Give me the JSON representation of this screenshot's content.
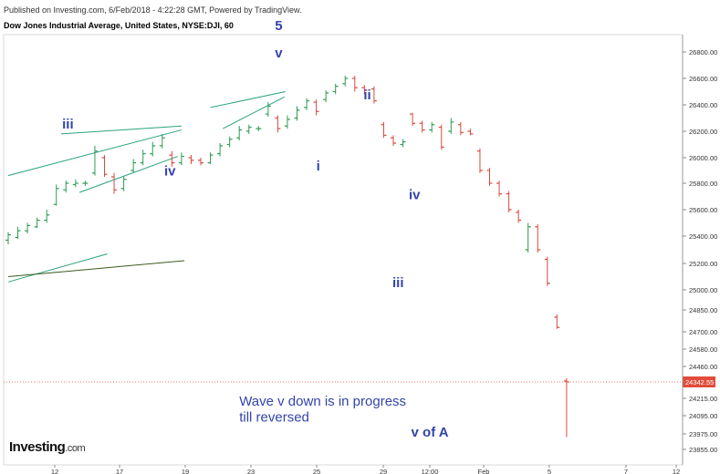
{
  "header": {
    "published": "Published on Investing.com, 6/Feb/2018 - 4:22:28 GMT, Powered by TradingView.",
    "symbol": "Dow Jones Industrial Average, United States, NYSE:DJI, 60"
  },
  "logo": {
    "text": "Investing",
    "suffix": ".com"
  },
  "colors": {
    "up": "#2e9a52",
    "down": "#d9493d",
    "trendline": "#2aa37a",
    "long_line": "#3b5a20",
    "label": "#3344aa",
    "price_tag": "#e24b3b"
  },
  "chart_data": {
    "type": "candlestick",
    "interval": "60",
    "y_ticks": [
      26800,
      26600,
      26400,
      26200,
      26000,
      25800,
      25600,
      25400,
      25200,
      25000,
      24850,
      24700,
      24580,
      24460,
      24342.55,
      24215,
      24095,
      23975,
      23855
    ],
    "y_tick_labels": [
      "26800.00",
      "26600.00",
      "26400.00",
      "26200.00",
      "26000.00",
      "25800.00",
      "25600.00",
      "25400.00",
      "25200.00",
      "25000.00",
      "24850.00",
      "24700.00",
      "24580.00",
      "24460.00",
      "24342.55",
      "24215.00",
      "24095.00",
      "23975.00",
      "23855.00"
    ],
    "x_tick_labels": [
      "12",
      "17",
      "19",
      "23",
      "25",
      "29",
      "12:00",
      "Feb",
      "5",
      "7",
      "12"
    ],
    "last_price": 24342.55,
    "candles": [
      {
        "o": 25370,
        "c": 25410,
        "h": 25430,
        "l": 25340
      },
      {
        "o": 25390,
        "c": 25440,
        "h": 25470,
        "l": 25380
      },
      {
        "o": 25440,
        "c": 25480,
        "h": 25500,
        "l": 25420
      },
      {
        "o": 25470,
        "c": 25520,
        "h": 25540,
        "l": 25460
      },
      {
        "o": 25520,
        "c": 25560,
        "h": 25600,
        "l": 25500
      },
      {
        "o": 25640,
        "c": 25760,
        "h": 25790,
        "l": 25630
      },
      {
        "o": 25750,
        "c": 25800,
        "h": 25820,
        "l": 25730
      },
      {
        "o": 25790,
        "c": 25800,
        "h": 25830,
        "l": 25770
      },
      {
        "o": 25800,
        "c": 25800,
        "h": 25820,
        "l": 25780
      },
      {
        "o": 25880,
        "c": 26050,
        "h": 26090,
        "l": 25860
      },
      {
        "o": 26000,
        "c": 25870,
        "h": 26020,
        "l": 25850
      },
      {
        "o": 25850,
        "c": 25750,
        "h": 25880,
        "l": 25720
      },
      {
        "o": 25760,
        "c": 25830,
        "h": 25850,
        "l": 25740
      },
      {
        "o": 25900,
        "c": 25960,
        "h": 25990,
        "l": 25880
      },
      {
        "o": 25960,
        "c": 26030,
        "h": 26060,
        "l": 25940
      },
      {
        "o": 26030,
        "c": 26090,
        "h": 26120,
        "l": 26010
      },
      {
        "o": 26090,
        "c": 26150,
        "h": 26180,
        "l": 26070
      },
      {
        "o": 26020,
        "c": 25960,
        "h": 26050,
        "l": 25930
      },
      {
        "o": 25960,
        "c": 26010,
        "h": 26040,
        "l": 25940
      },
      {
        "o": 26000,
        "c": 25980,
        "h": 26020,
        "l": 25950
      },
      {
        "o": 25980,
        "c": 25960,
        "h": 26000,
        "l": 25940
      },
      {
        "o": 25960,
        "c": 26020,
        "h": 26040,
        "l": 25950
      },
      {
        "o": 26030,
        "c": 26090,
        "h": 26110,
        "l": 26010
      },
      {
        "o": 26100,
        "c": 26140,
        "h": 26160,
        "l": 26080
      },
      {
        "o": 26150,
        "c": 26210,
        "h": 26240,
        "l": 26130
      },
      {
        "o": 26200,
        "c": 26230,
        "h": 26250,
        "l": 26180
      },
      {
        "o": 26220,
        "c": 26220,
        "h": 26240,
        "l": 26200
      },
      {
        "o": 26330,
        "c": 26390,
        "h": 26420,
        "l": 26310
      },
      {
        "o": 26300,
        "c": 26220,
        "h": 26320,
        "l": 26190
      },
      {
        "o": 26240,
        "c": 26290,
        "h": 26320,
        "l": 26220
      },
      {
        "o": 26300,
        "c": 26360,
        "h": 26390,
        "l": 26280
      },
      {
        "o": 26380,
        "c": 26430,
        "h": 26450,
        "l": 26360
      },
      {
        "o": 26420,
        "c": 26350,
        "h": 26440,
        "l": 26320
      },
      {
        "o": 26440,
        "c": 26490,
        "h": 26510,
        "l": 26420
      },
      {
        "o": 26500,
        "c": 26540,
        "h": 26560,
        "l": 26480
      },
      {
        "o": 26560,
        "c": 26600,
        "h": 26620,
        "l": 26540
      },
      {
        "o": 26600,
        "c": 26530,
        "h": 26620,
        "l": 26500
      },
      {
        "o": 26530,
        "c": 26510,
        "h": 26550,
        "l": 26480
      },
      {
        "o": 26520,
        "c": 26430,
        "h": 26540,
        "l": 26410
      },
      {
        "o": 26250,
        "c": 26170,
        "h": 26270,
        "l": 26150
      },
      {
        "o": 26150,
        "c": 26110,
        "h": 26170,
        "l": 26090
      },
      {
        "o": 26100,
        "c": 26120,
        "h": 26140,
        "l": 26080
      },
      {
        "o": 26330,
        "c": 26260,
        "h": 26340,
        "l": 26240
      },
      {
        "o": 26260,
        "c": 26210,
        "h": 26280,
        "l": 26190
      },
      {
        "o": 26210,
        "c": 26250,
        "h": 26270,
        "l": 26190
      },
      {
        "o": 26230,
        "c": 26080,
        "h": 26250,
        "l": 26060
      },
      {
        "o": 26200,
        "c": 26270,
        "h": 26300,
        "l": 26180
      },
      {
        "o": 26250,
        "c": 26190,
        "h": 26270,
        "l": 26170
      },
      {
        "o": 26200,
        "c": 26180,
        "h": 26220,
        "l": 26170
      },
      {
        "o": 26050,
        "c": 25900,
        "h": 26070,
        "l": 25880
      },
      {
        "o": 25900,
        "c": 25800,
        "h": 25920,
        "l": 25780
      },
      {
        "o": 25800,
        "c": 25720,
        "h": 25820,
        "l": 25700
      },
      {
        "o": 25720,
        "c": 25600,
        "h": 25740,
        "l": 25580
      },
      {
        "o": 25580,
        "c": 25520,
        "h": 25600,
        "l": 25500
      },
      {
        "o": 25300,
        "c": 25470,
        "h": 25500,
        "l": 25280
      },
      {
        "o": 25470,
        "c": 25300,
        "h": 25490,
        "l": 25280
      },
      {
        "o": 25230,
        "c": 25050,
        "h": 25250,
        "l": 25030
      },
      {
        "o": 24800,
        "c": 24730,
        "h": 24820,
        "l": 24720
      },
      {
        "o": 24350,
        "c": 24342.55,
        "h": 24370,
        "l": 23950
      }
    ],
    "annotations": [
      {
        "text": "5",
        "x": 28.1,
        "y": 26965
      },
      {
        "text": "v",
        "x": 28.1,
        "y": 26760
      },
      {
        "text": "iii",
        "x": 6.2,
        "y": 26220
      },
      {
        "text": "iv",
        "x": 16.8,
        "y": 25860
      },
      {
        "text": "i",
        "x": 32.2,
        "y": 25900
      },
      {
        "text": "ii",
        "x": 37.3,
        "y": 26440
      },
      {
        "text": "iv",
        "x": 42.2,
        "y": 25680
      },
      {
        "text": "iii",
        "x": 40.5,
        "y": 25020
      },
      {
        "text": "Wave v down is in progress",
        "x": 24.0,
        "y": 24165
      },
      {
        "text": "till reversed",
        "x": 24.0,
        "y": 24055
      },
      {
        "text": "v  of A",
        "x": 43.8,
        "y": 23955
      }
    ],
    "trendlines": [
      {
        "x1": 0,
        "y1": 25860,
        "x2": 18.0,
        "y2": 26210,
        "kind": "channel"
      },
      {
        "x1": 5.5,
        "y1": 26180,
        "x2": 18.0,
        "y2": 26240,
        "kind": "channel"
      },
      {
        "x1": 7.4,
        "y1": 25730,
        "x2": 17.6,
        "y2": 26010,
        "kind": "channel"
      },
      {
        "x1": 21.0,
        "y1": 26380,
        "x2": 28.8,
        "y2": 26500,
        "kind": "channel"
      },
      {
        "x1": 22.3,
        "y1": 26220,
        "x2": 28.7,
        "y2": 26460,
        "kind": "channel"
      },
      {
        "x1": 0,
        "y1": 25060,
        "x2": 10.3,
        "y2": 25270,
        "kind": "channel"
      },
      {
        "x1": 0,
        "y1": 25100,
        "x2": 18.3,
        "y2": 25220,
        "kind": "long"
      }
    ]
  }
}
